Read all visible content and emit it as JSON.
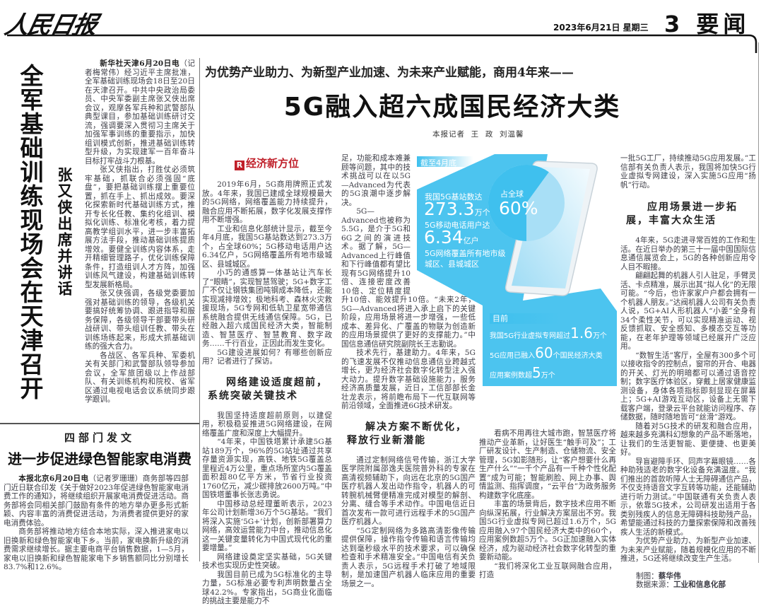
{
  "masthead": {
    "logo": "人民日报",
    "date": "2023年6月21日 星期三",
    "page": "3 要闻"
  },
  "left_story": {
    "headline": "全军基础训练现场会在天津召开",
    "subhead": "张又侠出席并讲话",
    "lead": "新华社天津6月20日电",
    "paragraphs": [
      "（记者梅常伟）经习近平主席批准，全军基础训练现场会18日至20日在天津召开。中共中央政治局委员、中央军委副主席张又侠出席会议，观摩各军兵种和武警部队典型课目，参加基础训练研讨交流，强调要深入贯彻习主席关于加强军事训练的重要指示，加快组训模式创新，推进基础训练转型升级，为实现建军一百年奋斗目标打牢战斗力根基。",
      "张又侠指出，打胜仗必须筑牢基础，抓联合必须强固“底盘”，要把基础训练摆上重要位置，抓在手上、抓出成效。要深化探索新时代基础训练方式，推开专长化任教、集约化组训、模拟化训练、标准化考核，着力提高教学组训水平，进一步丰富拓展方法手段，推动基础训练提质增效。要健全训练内容体系，走开精细管理路子，优化训练保障条件，打造组训人才方阵，加强训练风气建设，构建基础训练转型发展新格局。",
      "张又侠强调，各级党委要加强对基础训练的领导，各级机关要搞好统筹协调、跟进指导和服务保障，各级领导干部要带头研战研训、带头组训任教、带头在训练场练起来，形成大抓基础训练的强大合力。",
      "各战区、各军兵种、军委机关有关部门和武警部队领导参加会议，全军旅团级以上作战部队、有关训练机构和院校、省军区通过电视电话会议系统同步跟学跟训。"
    ]
  },
  "bottom_story": {
    "kicker": "四部门发文",
    "headline": "进一步促进绿色智能家电消费",
    "lead": "本报北京6月20日电",
    "paragraphs": [
      "（记者罗珊珊）商务部等四部门近日联合印发《关于做好2023年促进绿色智能家电消费工作的通知》，将继续组织开展家电消费促进活动。商务部将会同相关部门鼓励有条件的地方举办更多形式新颖、内容丰富的消费促进活动，为消费者提供更好的家电消费体验。",
      "商务部将推动地方结合本地实际，深入推进家电以旧换新和绿色智能家电下乡。当前，家电换新升级的消费需求继续增长。据主要电商平台销售数据，1—5月，家电以旧换新和绿色智能家电下乡销售额同比分别增长83.7%和12.6%。"
    ]
  },
  "main": {
    "kicker": "为优势产业助力、为新型产业加速、为未来产业赋能，商用4年来——",
    "headline": "5G融入超六成国民经济大类",
    "byline": "本报记者  王  政  刘温馨",
    "column_label": "经济新方位",
    "col2": [
      "2019年6月，5G商用牌照正式发放。4年来，我国已建成全球规模最大的5G网络，网络覆盖能力持续提升，融合应用不断拓展，数字化发展支撑作用不断增强。",
      "工业和信息化部统计显示，截至今年4月底，我国5G基站数达到273.3万个，占全球60%；5G移动电话用户达6.34亿户，5G网络覆盖所有地市级城区、县城城区。",
      "小巧的通感算一体基站让汽车长了“眼睛”，实现智慧驾驶；5G+数字工厂不仅让钢铁集团吨钢成本降低，还能实现减排增效；极地科考、森林火灾救援现场，5G专网和低轨卫星宽带通信系统融合提供无线通信保障。5G，已经融入超六成国民经济大类，智能制造、智慧医疗、智慧教育、数字政务……千行百业，正因此而发生变化。",
      "5G建设进展如何？有哪些创新应用？记者进行了探访。"
    ],
    "section1": [
      "网络建设适度超前，",
      "系统突破关键技术"
    ],
    "col2b": [
      "我国坚持适度超前原则，以建促用，积极稳妥推进5G网络建设，在网络覆盖广度和深度上大幅提升。",
      "“4年来，中国铁塔累计承建5G基站189万个，96%的5G站址通过共享存量资源实现，高铁、地铁5G覆盖总里程近4万公里，重点场所室内5G覆盖面积超80亿平方米，节省行业投资1760亿元，减少碳排放2600万吨。”中国铁塔董事长张志勇说。",
      "中国移动总经理董昕表示，2023年公司计划新增36万个5G基站。“我们将深入实施‘5G+’计划，创新部署算力网络，高效运营能力中台，推动信息化这一关键变量转化为中国式现代化的重要增量。”",
      "网络建设奠定坚实基础，5G关键技术也实现历史性突破。",
      "我国目前已成为5G标准化的主导力量，5G标准必要专利声明数量占全球42.2%。专家指出，5G商业化面临的挑战主要是能力不"
    ],
    "col3": [
      "足，功能和成本难兼顾等问题，其中的技术挑战可以在以5G—Advanced为代表的5G浪潮中逐步解决。",
      "5G—Advanced也被称为5.5G，是介于5G和6G之间的演进技术。据了解，5G—Advanced上行峰值和下行峰值都有望比现有5G网络提升10倍、连接密度改善10倍、定位精度提升10倍、能效提升10倍。“未来2年，5G—Advanced将进入承上启下的关键阶段，应用场景将进一步增强，一些低成本、差异化、广覆盖的物联为创造新的应用场景提供了更好的支撑能力。”中国信息通信研究院副院长王志勤说。",
      "技术先行，基建助力。4年来，5G的飞速发展不仅推动信息通信业跨越式增长，更为经济社会数字化转型注入强大动力。提升数字基础设施能力，服务经济高质量发展，近日，工信部部长金壮龙表示，将前瞻布局下一代互联网等前沿领域，全面推进6G技术研发。"
    ],
    "section2": [
      "解决方案不断优化，",
      "释放行业新潜能"
    ],
    "col3b": [
      "通过定制网络信号传输，浙江大学医学院附属邵逸夫医院普外科的专家在高清视频辅助下，向远在北京的5G国产医疗机器人发出动作指令，机器人的可转腕机械臂便精准完成对模型的解剖、分离、缝合等手术动作。中国电信近日首次发布一款可进行远程手术的5G国产医疗机器人。",
      "“5G定制网络为多路高清影像传输提供保障，操作指令传输和语言传输均达到毫秒级水平的技术要求，可以确保检查和手术精准安全。”中国电信有关负责人表示，5G远程手术打破了地域限制，是加速国产机器人临床应用的重要场景之一。"
    ],
    "col4": [
      "看病不用再往大城市跑，智慧医疗将推动产业革新，让好医生“触手可及”；工厂研发设计、生产制造、仓储物流、安全管理，5G如影随形，让“客户想要什么再生产什么”“一千个产品有一千种个性化配置”成为可能；智能刷脸、网上办事、舆情监测、指挥调度，“云平台”为政务服务构建数字化底座。",
      "丰富的场景背后，数字技术应用不断向纵深拓展，行业解决方案层出不穷。我国5G行业虚拟专网已超过1.6万个，5G应用融入97个国民经济大类中的60个，应用案例数超5万个。5G正加速融入实体经济，成为驱动经济社会数字化转型的重要新动能。",
      "“我们将深化工业互联网融合应用，打造"
    ],
    "col5": "一批5G工厂，持续推动5G应用发展。”工信部有关负责人表示，我国将加快5G行业虚拟专网建设，深入实施5G应用“扬帆”行动。",
    "section3": [
      "应用场景进一步拓",
      "展，丰富大众生活"
    ],
    "col5b": [
      "4年来，5G走进寻常百姓的工作和生活。在近日举办的第三十一届中国国际信息通信展览会上，5G的各种创新应用令人目不暇接。",
      "翩翩起舞的机器人引人驻足，手臂灵活、卡点精准，展示出其“拟人化”的无限可能。“今后，也许家家户户都会拥有一个机器人朋友。”达阀机器人公司有关负责人说，5G+AI人形机器人“小姜”全身有34个柔性关节，可以实现精准运动、视反馈抓取、安全感知、多模态交互等功能，在老年护理等领域已经展开广泛应用。",
      "“数智生活”客厅，全屋有300多个可以接收指令的控制点，窗帘的开合、电器的开关、灯光的明暗都可以通过语音控制；数字医疗体验区，穿戴上居家健康监测设备，身体各项指标即刻显现在屏幕上；5G+AI游戏互动区，设备上无需下载客户端，登录云平台就能访问程序、存储数据，随时随地皆可“丝滑”游戏。",
      "随着对5G技术的研发和融合应用，越来越多充满科幻想象的产品不断落地，让我们的生活更智能、更便捷、也更美好。",
      "导盲避障手环、同声字幕眼镜……各种助残适老的数字化设备充满温度。“我们推出的首款听障人士无障碍通信产品，不仅支持语音文字互转等功能，还能辅助进行听力测试。”中国联通有关负责人表示，依靠5G技术，公司研发出适用于各类别残疾人的信息无障碍科技助残产品，希望能通过科技的力量探索保障和改善残疾人生活的新模式。",
      "为优势产业助力、为新型产业加速、为未来产业赋能，随着规模化应用的不断推进，5G还将继续改变生产生活。"
    ],
    "credits": {
      "chart_label": "制图：",
      "chart_by": "蔡华伟",
      "source_label": "数据来源：",
      "source": "工业和信息化部"
    }
  },
  "infographic": {
    "colors": {
      "blue": "#3fc0ee",
      "light": "#a8dff6"
    },
    "top_label": "截至4月底",
    "base_stations_label": "我国5G基站数达",
    "base_stations_value": "273.3",
    "base_stations_unit": "万个",
    "users_label": "5G移动电话用户达",
    "users_value": "6.34",
    "users_unit": "亿户",
    "coverage": [
      "5G网络覆盖所有地市级",
      "城区、县城城区"
    ],
    "share_label": "占全球",
    "share_value": "60%",
    "share_fraction": 0.6,
    "bottom_label": "目前",
    "lines": [
      {
        "pre": "我国5G行业虚拟专网超过",
        "num": "1.6",
        "post": "万个"
      },
      {
        "pre": "5G应用已融入",
        "num": "60",
        "post": "个国民经济大类"
      },
      {
        "pre": "应用案例数超",
        "num": "5",
        "post": "万个"
      }
    ]
  }
}
